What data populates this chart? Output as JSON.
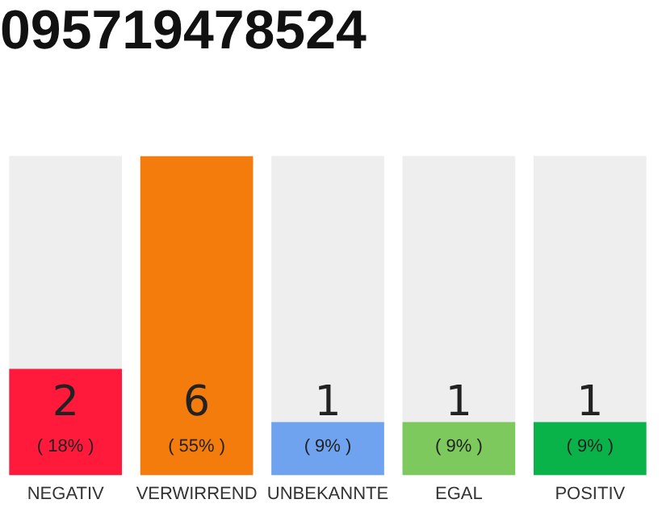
{
  "chart_data": {
    "type": "bar",
    "title": "095719478524",
    "categories": [
      "NEGATIV",
      "VERWIRREND",
      "UNBEKANNTE",
      "EGAL",
      "POSITIV"
    ],
    "values": [
      2,
      6,
      1,
      1,
      1
    ],
    "colors": [
      "#ff1a3c",
      "#f47c0c",
      "#6fa3f0",
      "#7dc95e",
      "#0ab34a"
    ],
    "ylim": [
      0,
      6
    ],
    "tick_labels": "x",
    "grid": false,
    "legend": false,
    "data_labels": true,
    "annotations": [
      "( 18% )",
      "( 55% )",
      "( 9% )",
      "( 9% )",
      "( 9% )"
    ]
  }
}
